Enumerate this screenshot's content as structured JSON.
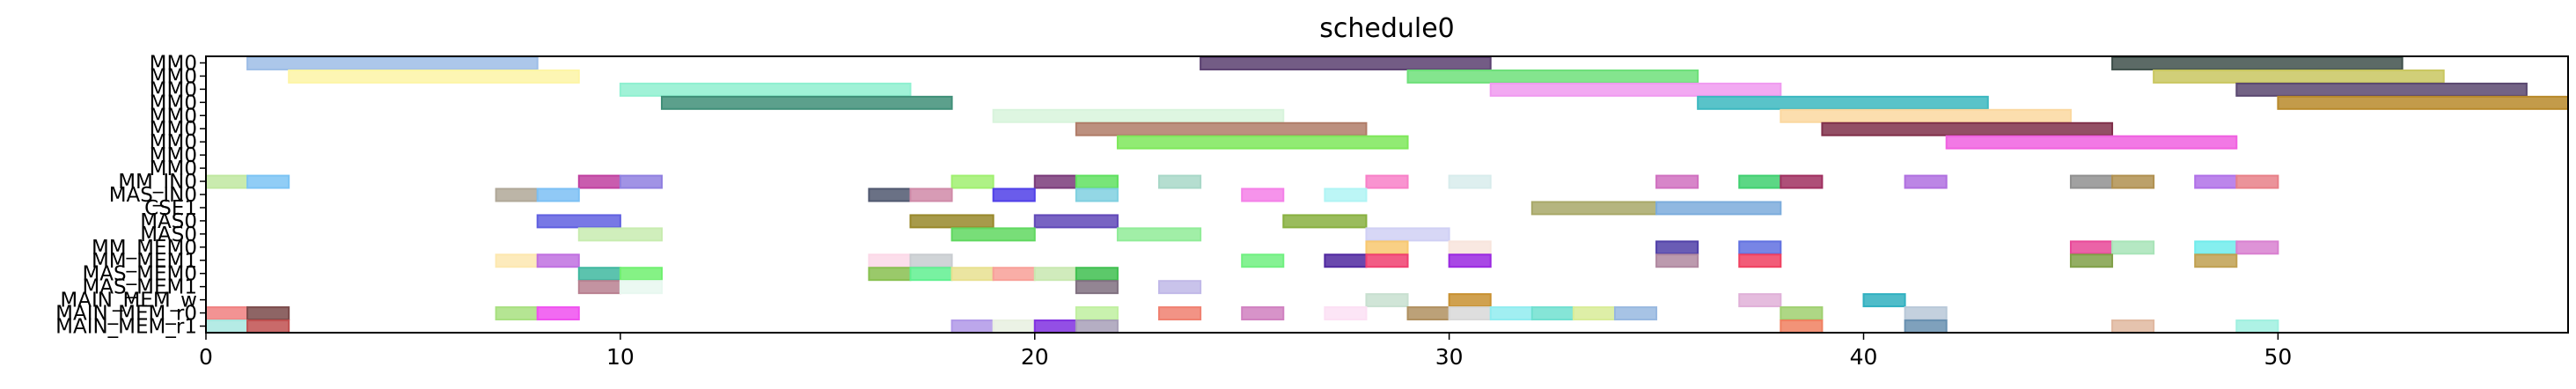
{
  "chart_data": {
    "type": "gantt",
    "title": "schedule0",
    "xlabel": "",
    "ylabel": "",
    "xlim": [
      0,
      57
    ],
    "xticks": [
      0,
      10,
      20,
      30,
      40,
      50
    ],
    "grid": false,
    "lanes": [
      "MM0",
      "MM0",
      "MM0",
      "MM0",
      "MM0",
      "MM0",
      "MM0",
      "MM0",
      "MM0",
      "MM_IN0",
      "MAS_IN0",
      "CSE1",
      "MAS0",
      "MAS0",
      "MM_MEM0",
      "MM_MEM1",
      "MAS_MEM0",
      "MAS_MEM1",
      "MAIN_MEM_w",
      "MAIN_MEM_r0",
      "MAIN_MEM_r1"
    ],
    "tasks": [
      {
        "lane": 0,
        "start": 1,
        "end": 8,
        "color": "#9dbde6"
      },
      {
        "lane": 0,
        "start": 24,
        "end": 31,
        "color": "#5a4070"
      },
      {
        "lane": 0,
        "start": 46,
        "end": 53,
        "color": "#3f504b"
      },
      {
        "lane": 1,
        "start": 2,
        "end": 9,
        "color": "#fdf5a6"
      },
      {
        "lane": 1,
        "start": 29,
        "end": 36,
        "color": "#6ee07a"
      },
      {
        "lane": 1,
        "start": 47,
        "end": 54,
        "color": "#c9c760"
      },
      {
        "lane": 2,
        "start": 10,
        "end": 17,
        "color": "#8ff0d0"
      },
      {
        "lane": 2,
        "start": 31,
        "end": 38,
        "color": "#f09af0"
      },
      {
        "lane": 2,
        "start": 49,
        "end": 56,
        "color": "#5a4870"
      },
      {
        "lane": 3,
        "start": 11,
        "end": 18,
        "color": "#3f8f78"
      },
      {
        "lane": 3,
        "start": 36,
        "end": 43,
        "color": "#3cb8c0"
      },
      {
        "lane": 3,
        "start": 50,
        "end": 57,
        "color": "#b8892a"
      },
      {
        "lane": 4,
        "start": 19,
        "end": 26,
        "color": "#d8f4dc"
      },
      {
        "lane": 4,
        "start": 38,
        "end": 45,
        "color": "#fbd8a0"
      },
      {
        "lane": 5,
        "start": 21,
        "end": 28,
        "color": "#b07c68"
      },
      {
        "lane": 5,
        "start": 39,
        "end": 46,
        "color": "#80304a"
      },
      {
        "lane": 6,
        "start": 22,
        "end": 29,
        "color": "#7ee85a"
      },
      {
        "lane": 6,
        "start": 42,
        "end": 49,
        "color": "#f060e0"
      },
      {
        "lane": 9,
        "start": 0,
        "end": 1,
        "color": "#c0e8a0"
      },
      {
        "lane": 9,
        "start": 1,
        "end": 2,
        "color": "#7cc4f4"
      },
      {
        "lane": 9,
        "start": 9,
        "end": 10,
        "color": "#c040a0"
      },
      {
        "lane": 9,
        "start": 10,
        "end": 11,
        "color": "#9080e0"
      },
      {
        "lane": 9,
        "start": 18,
        "end": 19,
        "color": "#a0f070"
      },
      {
        "lane": 9,
        "start": 20,
        "end": 21,
        "color": "#7a3a7a"
      },
      {
        "lane": 9,
        "start": 21,
        "end": 22,
        "color": "#60e060"
      },
      {
        "lane": 9,
        "start": 23,
        "end": 24,
        "color": "#a8d8c8"
      },
      {
        "lane": 9,
        "start": 28,
        "end": 29,
        "color": "#f880c8"
      },
      {
        "lane": 9,
        "start": 30,
        "end": 31,
        "color": "#d8ecec"
      },
      {
        "lane": 9,
        "start": 35,
        "end": 36,
        "color": "#d070c0"
      },
      {
        "lane": 9,
        "start": 37,
        "end": 38,
        "color": "#40d070"
      },
      {
        "lane": 9,
        "start": 38,
        "end": 39,
        "color": "#a03060"
      },
      {
        "lane": 9,
        "start": 41,
        "end": 42,
        "color": "#b070e0"
      },
      {
        "lane": 9,
        "start": 45,
        "end": 46,
        "color": "#909090"
      },
      {
        "lane": 9,
        "start": 46,
        "end": 47,
        "color": "#b09050"
      },
      {
        "lane": 9,
        "start": 48,
        "end": 49,
        "color": "#b070e8"
      },
      {
        "lane": 9,
        "start": 49,
        "end": 50,
        "color": "#e88088"
      },
      {
        "lane": 10,
        "start": 7,
        "end": 8,
        "color": "#b0a898"
      },
      {
        "lane": 10,
        "start": 8,
        "end": 9,
        "color": "#7cc0f4"
      },
      {
        "lane": 10,
        "start": 16,
        "end": 17,
        "color": "#505870"
      },
      {
        "lane": 10,
        "start": 17,
        "end": 18,
        "color": "#d08aa8"
      },
      {
        "lane": 10,
        "start": 19,
        "end": 20,
        "color": "#5040e8"
      },
      {
        "lane": 10,
        "start": 21,
        "end": 22,
        "color": "#80d0e0"
      },
      {
        "lane": 10,
        "start": 25,
        "end": 26,
        "color": "#f480e8"
      },
      {
        "lane": 10,
        "start": 27,
        "end": 28,
        "color": "#b0f4f4"
      },
      {
        "lane": 11,
        "start": 32,
        "end": 35,
        "color": "#a8a868"
      },
      {
        "lane": 11,
        "start": 35,
        "end": 38,
        "color": "#7cacdc"
      },
      {
        "lane": 12,
        "start": 8,
        "end": 10,
        "color": "#6060e0"
      },
      {
        "lane": 12,
        "start": 17,
        "end": 19,
        "color": "#98882a"
      },
      {
        "lane": 12,
        "start": 20,
        "end": 22,
        "color": "#6048b8"
      },
      {
        "lane": 12,
        "start": 26,
        "end": 28,
        "color": "#88b040"
      },
      {
        "lane": 13,
        "start": 9,
        "end": 11,
        "color": "#c8ecb0"
      },
      {
        "lane": 13,
        "start": 18,
        "end": 20,
        "color": "#60d860"
      },
      {
        "lane": 13,
        "start": 22,
        "end": 24,
        "color": "#90ec98"
      },
      {
        "lane": 13,
        "start": 28,
        "end": 30,
        "color": "#d0d0f4"
      },
      {
        "lane": 14,
        "start": 28,
        "end": 29,
        "color": "#f8c870"
      },
      {
        "lane": 14,
        "start": 30,
        "end": 31,
        "color": "#f8e4dc"
      },
      {
        "lane": 14,
        "start": 35,
        "end": 36,
        "color": "#5040a8"
      },
      {
        "lane": 14,
        "start": 37,
        "end": 38,
        "color": "#6070e0"
      },
      {
        "lane": 14,
        "start": 45,
        "end": 46,
        "color": "#e84898"
      },
      {
        "lane": 14,
        "start": 46,
        "end": 47,
        "color": "#a8e4b8"
      },
      {
        "lane": 14,
        "start": 48,
        "end": 49,
        "color": "#70ecec"
      },
      {
        "lane": 14,
        "start": 49,
        "end": 50,
        "color": "#d880d0"
      },
      {
        "lane": 15,
        "start": 7,
        "end": 8,
        "color": "#fde8b0"
      },
      {
        "lane": 15,
        "start": 8,
        "end": 9,
        "color": "#c070e0"
      },
      {
        "lane": 15,
        "start": 16,
        "end": 17,
        "color": "#fcd8e8"
      },
      {
        "lane": 15,
        "start": 17,
        "end": 18,
        "color": "#c8ccd0"
      },
      {
        "lane": 15,
        "start": 25,
        "end": 26,
        "color": "#70f080"
      },
      {
        "lane": 15,
        "start": 27,
        "end": 28,
        "color": "#5028a0"
      },
      {
        "lane": 15,
        "start": 28,
        "end": 29,
        "color": "#f04070"
      },
      {
        "lane": 15,
        "start": 30,
        "end": 31,
        "color": "#9a28e0"
      },
      {
        "lane": 15,
        "start": 35,
        "end": 36,
        "color": "#b088a0"
      },
      {
        "lane": 15,
        "start": 37,
        "end": 38,
        "color": "#f04060"
      },
      {
        "lane": 15,
        "start": 45,
        "end": 46,
        "color": "#80a048"
      },
      {
        "lane": 15,
        "start": 48,
        "end": 49,
        "color": "#c0a050"
      },
      {
        "lane": 16,
        "start": 9,
        "end": 10,
        "color": "#40b8a0"
      },
      {
        "lane": 16,
        "start": 10,
        "end": 11,
        "color": "#70f070"
      },
      {
        "lane": 16,
        "start": 16,
        "end": 17,
        "color": "#88c050"
      },
      {
        "lane": 16,
        "start": 17,
        "end": 18,
        "color": "#60f090"
      },
      {
        "lane": 16,
        "start": 18,
        "end": 19,
        "color": "#e8e090"
      },
      {
        "lane": 16,
        "start": 19,
        "end": 20,
        "color": "#f8a098"
      },
      {
        "lane": 16,
        "start": 20,
        "end": 21,
        "color": "#c8e8b0"
      },
      {
        "lane": 16,
        "start": 21,
        "end": 22,
        "color": "#40c050"
      },
      {
        "lane": 17,
        "start": 9,
        "end": 10,
        "color": "#b88090"
      },
      {
        "lane": 17,
        "start": 10,
        "end": 11,
        "color": "#e8f8f0"
      },
      {
        "lane": 17,
        "start": 21,
        "end": 22,
        "color": "#807080"
      },
      {
        "lane": 17,
        "start": 23,
        "end": 24,
        "color": "#c0b8e8"
      },
      {
        "lane": 18,
        "start": 28,
        "end": 29,
        "color": "#c8e0d0"
      },
      {
        "lane": 18,
        "start": 30,
        "end": 31,
        "color": "#c89030"
      },
      {
        "lane": 18,
        "start": 37,
        "end": 38,
        "color": "#e0b0d8"
      },
      {
        "lane": 18,
        "start": 40,
        "end": 41,
        "color": "#30b0c0"
      },
      {
        "lane": 19,
        "start": 0,
        "end": 1,
        "color": "#f08080"
      },
      {
        "lane": 19,
        "start": 1,
        "end": 2,
        "color": "#7a4a4a"
      },
      {
        "lane": 19,
        "start": 7,
        "end": 8,
        "color": "#a8e080"
      },
      {
        "lane": 19,
        "start": 8,
        "end": 9,
        "color": "#f050f0"
      },
      {
        "lane": 19,
        "start": 21,
        "end": 22,
        "color": "#c0f0a0"
      },
      {
        "lane": 19,
        "start": 23,
        "end": 24,
        "color": "#f08070"
      },
      {
        "lane": 19,
        "start": 25,
        "end": 26,
        "color": "#d080c0"
      },
      {
        "lane": 19,
        "start": 27,
        "end": 28,
        "color": "#fce0f4"
      },
      {
        "lane": 19,
        "start": 29,
        "end": 30,
        "color": "#b09060"
      },
      {
        "lane": 19,
        "start": 30,
        "end": 31,
        "color": "#d8d8d8"
      },
      {
        "lane": 19,
        "start": 31,
        "end": 32,
        "color": "#90ecf0"
      },
      {
        "lane": 19,
        "start": 32,
        "end": 33,
        "color": "#70e0d0"
      },
      {
        "lane": 19,
        "start": 33,
        "end": 34,
        "color": "#d8ec98"
      },
      {
        "lane": 19,
        "start": 34,
        "end": 35,
        "color": "#98b8e0"
      },
      {
        "lane": 19,
        "start": 38,
        "end": 39,
        "color": "#a0d070"
      },
      {
        "lane": 19,
        "start": 41,
        "end": 42,
        "color": "#b8c8d8"
      },
      {
        "lane": 20,
        "start": 0,
        "end": 1,
        "color": "#a8e8e0"
      },
      {
        "lane": 20,
        "start": 1,
        "end": 2,
        "color": "#c05050"
      },
      {
        "lane": 20,
        "start": 18,
        "end": 19,
        "color": "#b098e8"
      },
      {
        "lane": 20,
        "start": 19,
        "end": 20,
        "color": "#e8f0e0"
      },
      {
        "lane": 20,
        "start": 20,
        "end": 21,
        "color": "#8030e0"
      },
      {
        "lane": 20,
        "start": 21,
        "end": 22,
        "color": "#a8a0b8"
      },
      {
        "lane": 20,
        "start": 38,
        "end": 39,
        "color": "#f08060"
      },
      {
        "lane": 20,
        "start": 41,
        "end": 42,
        "color": "#6890b0"
      },
      {
        "lane": 20,
        "start": 46,
        "end": 47,
        "color": "#e0b8a0"
      },
      {
        "lane": 20,
        "start": 49,
        "end": 50,
        "color": "#a0f0e0"
      }
    ]
  }
}
